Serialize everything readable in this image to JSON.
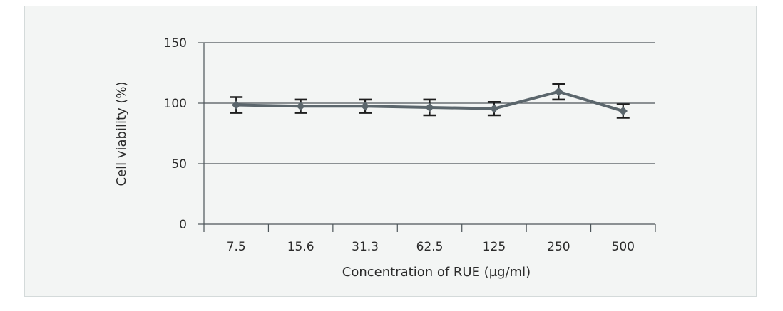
{
  "chart_data": {
    "type": "line",
    "title": "",
    "xlabel": "Concentration of RUE (µg/ml)",
    "ylabel": "Cell viability (%)",
    "categories": [
      "7.5",
      "15.6",
      "31.3",
      "62.5",
      "125",
      "250",
      "500"
    ],
    "series": [
      {
        "values": [
          98.5,
          97.5,
          97.5,
          96.5,
          95.5,
          109.5,
          93.5
        ],
        "error": [
          6.5,
          5.5,
          5.5,
          6.5,
          5.5,
          6.5,
          5.5
        ],
        "color": "#5b666c",
        "marker": "diamond"
      }
    ],
    "ylim": [
      0,
      150
    ],
    "yticks": [
      "0",
      "50",
      "100",
      "150"
    ],
    "grid": true,
    "legend": "none",
    "colors": {
      "background": "#f3f5f4",
      "border": "#d4dada",
      "grid": "#4d5559",
      "series": "#5b666c",
      "errorbar": "#1e1e1e"
    }
  }
}
